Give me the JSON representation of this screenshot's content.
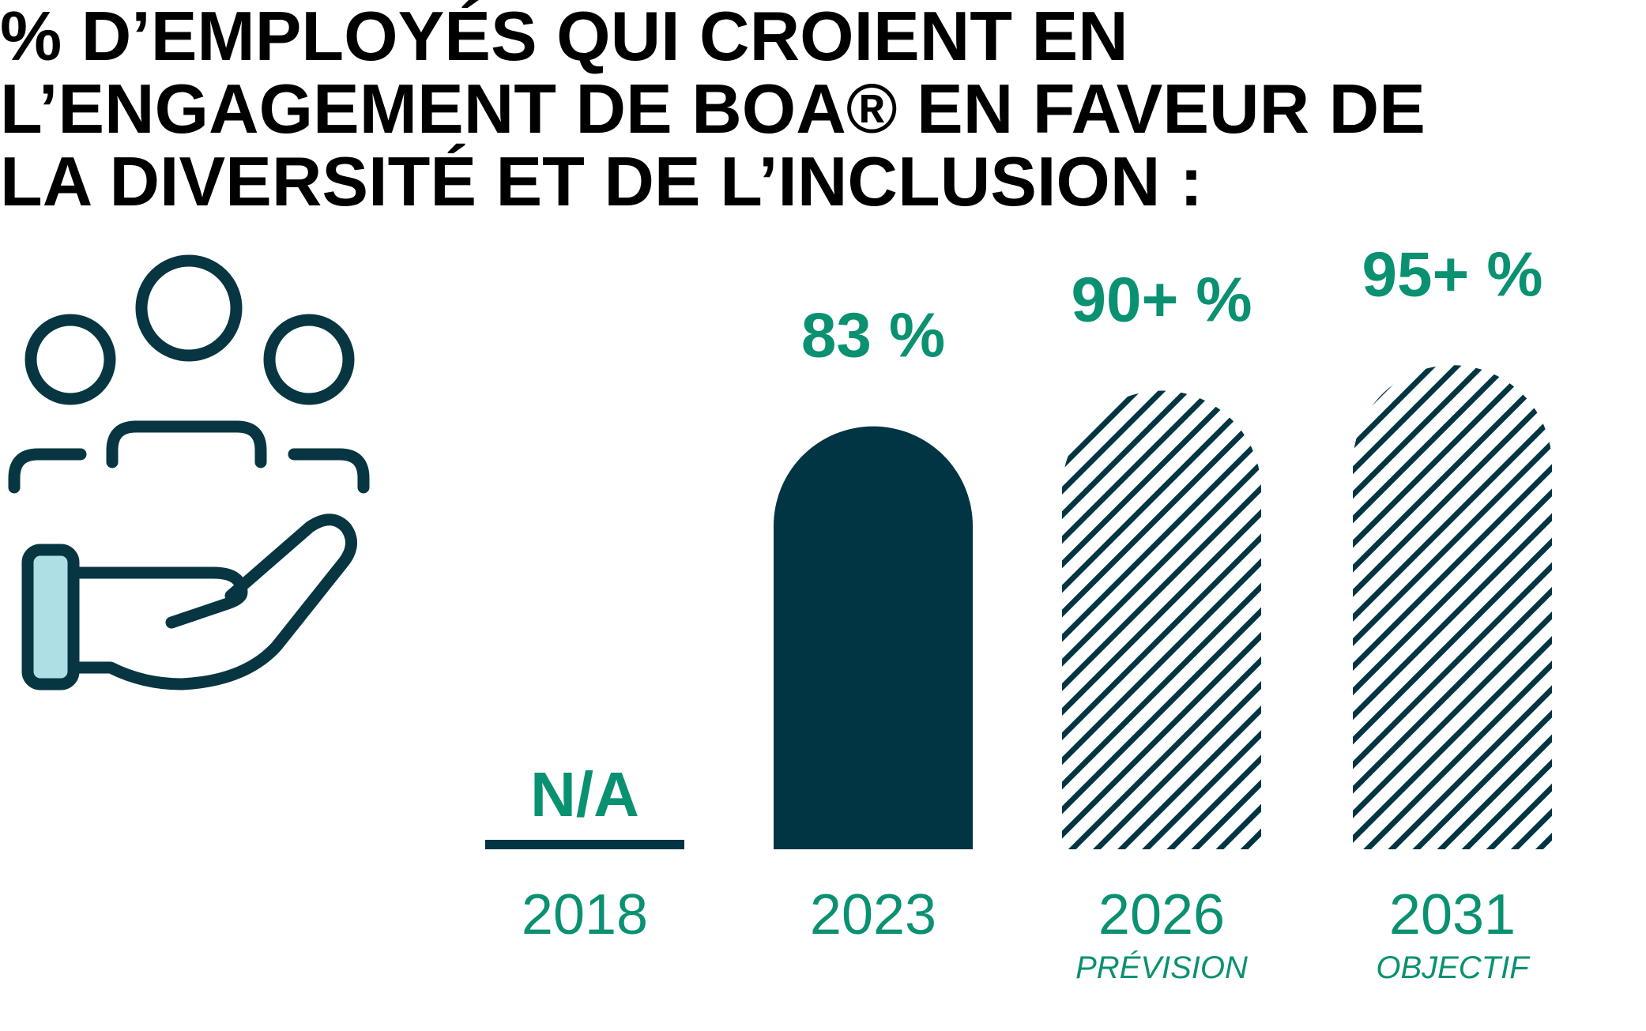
{
  "chart_data": {
    "type": "bar",
    "title": "% D’EMPLOYÉS QUI CROIENT EN\nL’ENGAGEMENT DE BOA® EN FAVEUR DE\nLA DIVERSITÉ ET DE L’INCLUSION :",
    "categories": [
      "2018",
      "2023",
      "2026",
      "2031"
    ],
    "category_notes": [
      "",
      "",
      "PRÉVISION",
      "OBJECTIF"
    ],
    "values": [
      null,
      83,
      90,
      95
    ],
    "value_labels": [
      "N/A",
      "83 %",
      "90+ %",
      "95+ %"
    ],
    "bar_styles": [
      "none",
      "solid",
      "hatched",
      "hatched"
    ],
    "ylim": [
      0,
      100
    ],
    "grid": false,
    "legend": "none",
    "xlabel": "",
    "ylabel": ""
  },
  "colors": {
    "title": "#000000",
    "bar_solid": "#023543",
    "hatch": "#023543",
    "label_green": "#0A9171",
    "icon_stroke": "#073642",
    "icon_cuff_fill": "#AEDFE5"
  },
  "icon": "people-on-hand-icon"
}
